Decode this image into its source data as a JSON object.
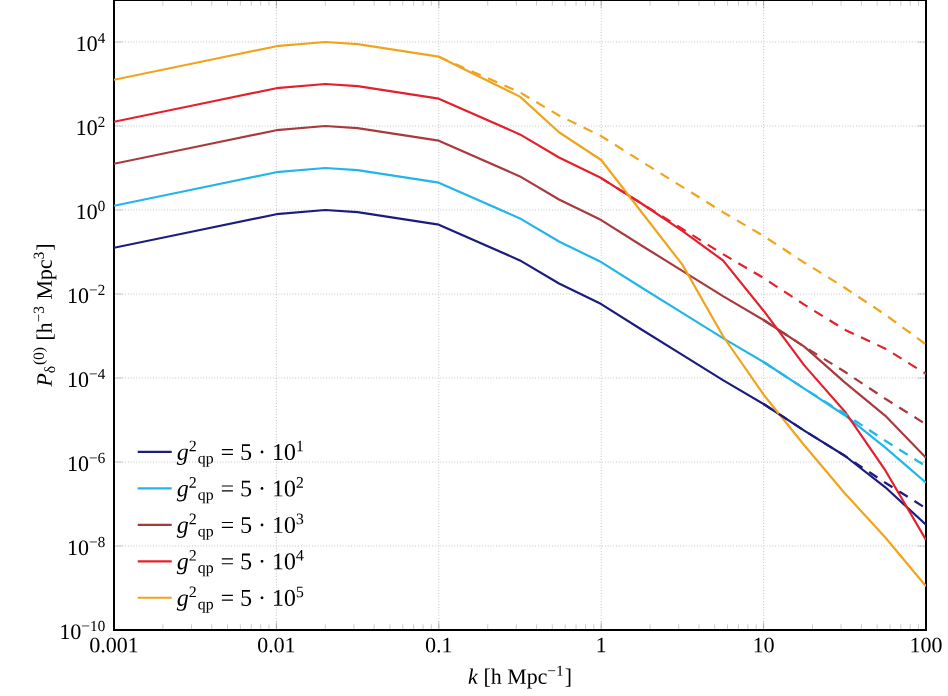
{
  "chart_data": {
    "type": "line",
    "xlabel": "*k* [h Mpc$^{−1}$]",
    "ylabel": "*P*$_{δ}$$^{(0)}$ [h$^{−3}$ Mpc$^{3}$]",
    "log": "xy",
    "grid": true,
    "legend": "bottom left",
    "xlim": [
      0.001,
      100
    ],
    "ylim": [
      1e-10,
      100000.0
    ],
    "xticks": [
      0.001,
      0.01,
      0.1,
      1,
      10,
      100
    ],
    "yticks": [
      {
        "value": 1e-10,
        "label": "10$^{−10}$"
      },
      {
        "value": 1e-08,
        "label": "10$^{−8}$"
      },
      {
        "value": 1e-06,
        "label": "10$^{−6}$"
      },
      {
        "value": 0.0001,
        "label": "10$^{−4}$"
      },
      {
        "value": 0.01,
        "label": "10$^{−2}$"
      },
      {
        "value": 1,
        "label": "10$^{0}$"
      },
      {
        "value": 100,
        "label": "10$^{2}$"
      },
      {
        "value": 10000,
        "label": "10$^{4}$"
      }
    ],
    "series": [
      {
        "name": "*g*$^{2}$$_{qp}$ = 5 · 10$^{1}$",
        "color": "#1c1c80",
        "line_style": "solid",
        "x": [
          0.001,
          0.00316,
          0.01,
          0.02,
          0.0316,
          0.1,
          0.316,
          0.55,
          1,
          1.78,
          3.16,
          5.62,
          10,
          17.8,
          31.6,
          56.2,
          100
        ],
        "values": [
          0.126,
          0.316,
          0.794,
          1,
          0.891,
          0.447,
          0.063,
          0.0178,
          0.00575,
          0.00141,
          0.000355,
          8.9e-05,
          2.4e-05,
          5.6e-06,
          1.41e-06,
          2.5e-07,
          3.2e-08
        ]
      },
      {
        "name": "*g*$^{2}$$_{qp}$ = 5 · 10$^{2}$",
        "color": "#22b5e8",
        "line_style": "solid",
        "x": [
          0.001,
          0.00316,
          0.01,
          0.02,
          0.0316,
          0.1,
          0.316,
          0.55,
          1,
          1.78,
          3.16,
          5.62,
          10,
          17.8,
          31.6,
          56.2,
          100
        ],
        "values": [
          1.26,
          3.16,
          7.94,
          10,
          8.91,
          4.47,
          0.63,
          0.178,
          0.0575,
          0.0141,
          0.00355,
          0.00089,
          0.00024,
          5.6e-05,
          1.3e-05,
          2.2e-06,
          3.2e-07
        ]
      },
      {
        "name": "*g*$^{2}$$_{qp}$ = 5 · 10$^{3}$",
        "color": "#a83a3e",
        "line_style": "solid",
        "x": [
          0.001,
          0.00316,
          0.01,
          0.02,
          0.0316,
          0.1,
          0.316,
          0.55,
          1,
          1.78,
          3.16,
          5.62,
          10,
          17.8,
          31.6,
          56.2,
          100
        ],
        "values": [
          12.6,
          31.6,
          79.4,
          100,
          89.1,
          44.7,
          6.3,
          1.78,
          0.575,
          0.141,
          0.0355,
          0.0089,
          0.0024,
          0.00056,
          7.9e-05,
          1.26e-05,
          1.26e-06
        ]
      },
      {
        "name": "*g*$^{2}$$_{qp}$ = 5 · 10$^{4}$",
        "color": "#e4202c",
        "line_style": "solid",
        "x": [
          0.001,
          0.00316,
          0.01,
          0.02,
          0.0316,
          0.1,
          0.316,
          0.55,
          1,
          1.78,
          3.16,
          5.62,
          10,
          17.8,
          31.6,
          56.2,
          100
        ],
        "values": [
          126,
          316,
          794,
          1000,
          891,
          447,
          63,
          17.8,
          5.75,
          1.41,
          0.32,
          0.063,
          0.004,
          0.0002,
          1.6e-05,
          6.3e-07,
          1.4e-08
        ]
      },
      {
        "name": "*g*$^{2}$$_{qp}$ = 5 · 10$^{5}$",
        "color": "#f0a41e",
        "line_style": "solid",
        "x": [
          0.001,
          0.00316,
          0.01,
          0.02,
          0.0316,
          0.1,
          0.316,
          0.55,
          1,
          1.78,
          3.16,
          5.62,
          10,
          17.8,
          31.6,
          56.2,
          100
        ],
        "values": [
          1260,
          3160,
          7940,
          10000,
          8910,
          4470,
          500,
          71,
          15.5,
          0.87,
          0.05,
          0.001,
          4e-05,
          2.5e-06,
          1.8e-07,
          1.6e-08,
          1.1e-09
        ]
      },
      {
        "color": "#1c1c80",
        "line_style": "dashed",
        "x": [
          10,
          17.8,
          31.6,
          56.2,
          100
        ],
        "values": [
          2.4e-05,
          5.6e-06,
          1.41e-06,
          3.2e-07,
          7.9e-08
        ]
      },
      {
        "color": "#22b5e8",
        "line_style": "dashed",
        "x": [
          10,
          17.8,
          31.6,
          56.2,
          100
        ],
        "values": [
          0.00024,
          5.6e-05,
          1.41e-05,
          3.2e-06,
          7.9e-07
        ]
      },
      {
        "color": "#a83a3e",
        "line_style": "dashed",
        "x": [
          10,
          17.8,
          31.6,
          56.2,
          100
        ],
        "values": [
          0.0024,
          0.00056,
          0.000141,
          3.2e-05,
          7.9e-06
        ]
      },
      {
        "color": "#e4202c",
        "line_style": "dashed",
        "x": [
          1,
          1.78,
          3.16,
          5.62,
          10,
          17.8,
          31.6,
          56.2,
          100
        ],
        "values": [
          5.75,
          1.41,
          0.355,
          0.089,
          0.024,
          0.0056,
          0.00141,
          0.0005,
          0.000126
        ]
      },
      {
        "color": "#f0a41e",
        "line_style": "dashed",
        "x": [
          0.1,
          0.316,
          0.55,
          1,
          1.78,
          3.16,
          5.62,
          10,
          17.8,
          31.6,
          56.2,
          100
        ],
        "values": [
          4470,
          631,
          178,
          57.5,
          14.1,
          3.55,
          0.89,
          0.24,
          0.056,
          0.0141,
          0.0032,
          0.00063
        ]
      }
    ]
  }
}
